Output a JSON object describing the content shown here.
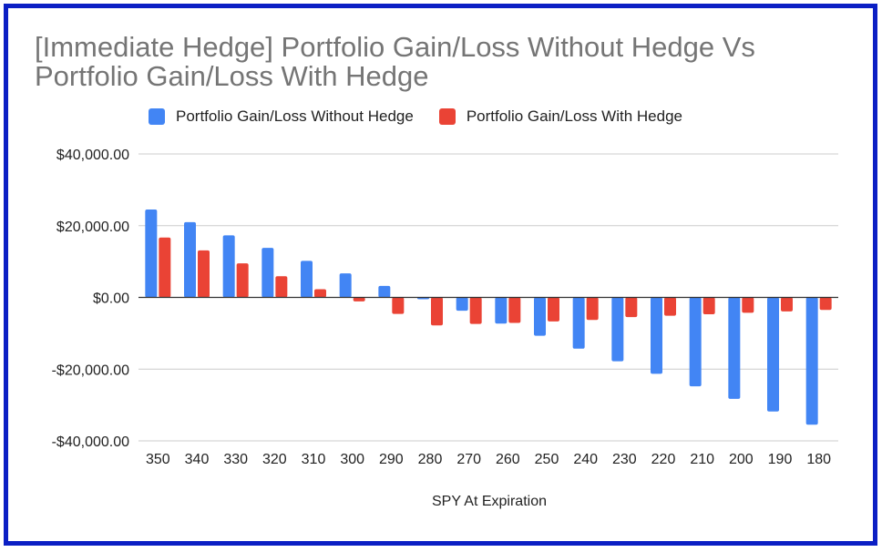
{
  "chart_data": {
    "type": "bar",
    "title": "[Immediate Hedge] Portfolio Gain/Loss Without Hedge Vs Portfolio Gain/Loss With Hedge",
    "xlabel": "SPY At Expiration",
    "ylabel": "",
    "categories": [
      "350",
      "340",
      "330",
      "320",
      "310",
      "300",
      "290",
      "280",
      "270",
      "260",
      "250",
      "240",
      "230",
      "220",
      "210",
      "200",
      "190",
      "180"
    ],
    "series": [
      {
        "name": "Portfolio Gain/Loss Without Hedge",
        "color": "#4285f4",
        "values": [
          24500,
          21000,
          17300,
          13800,
          10200,
          6700,
          3200,
          -500,
          -3700,
          -7300,
          -10700,
          -14300,
          -17800,
          -21300,
          -24800,
          -28300,
          -31800,
          -35500
        ]
      },
      {
        "name": "Portfolio Gain/Loss With Hedge",
        "color": "#ea4335",
        "values": [
          16700,
          13100,
          9500,
          5900,
          2300,
          -1100,
          -4600,
          -7800,
          -7400,
          -7100,
          -6700,
          -6300,
          -5500,
          -5100,
          -4700,
          -4300,
          -3900,
          -3500
        ]
      }
    ],
    "ylim": [
      -40000,
      40000
    ],
    "yticks": [
      40000,
      20000,
      0,
      -20000,
      -40000
    ],
    "ytick_labels": [
      "$40,000.00",
      "$20,000.00",
      "$0.00",
      "-$20,000.00",
      "-$40,000.00"
    ],
    "grid": true,
    "legend_position": "top"
  }
}
